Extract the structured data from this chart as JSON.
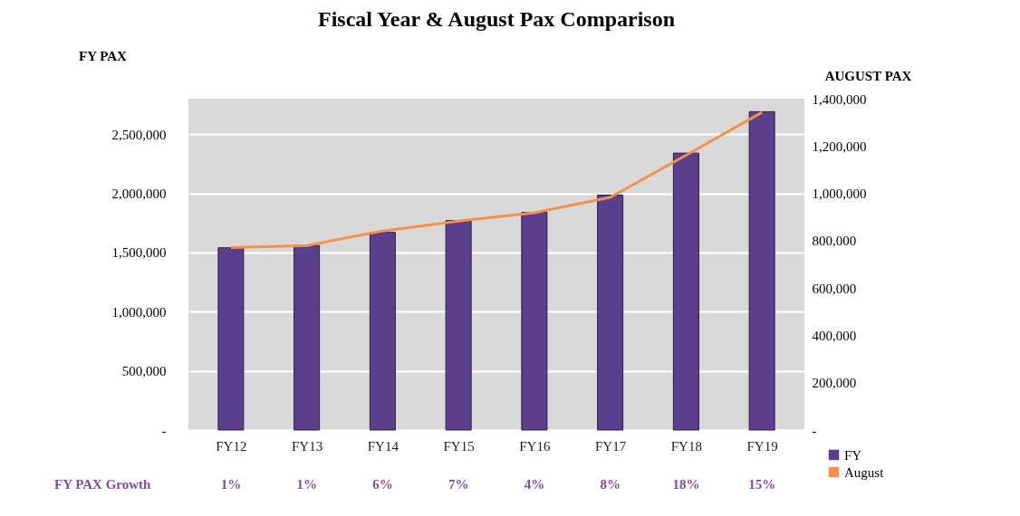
{
  "chart_data": {
    "type": "bar",
    "title": "Fiscal Year & August Pax Comparison",
    "ylabel": "FY PAX",
    "y2label": "AUGUST PAX",
    "categories": [
      "FY12",
      "FY13",
      "FY14",
      "FY15",
      "FY16",
      "FY17",
      "FY18",
      "FY19"
    ],
    "series": [
      {
        "name": "FY",
        "color": "#5b3f8c",
        "values": [
          1540000,
          1560000,
          1670000,
          1770000,
          1840000,
          1985000,
          2340000,
          2690000
        ]
      },
      {
        "name": "August",
        "type": "line",
        "axis": "y2",
        "color": "#f4914b",
        "values": [
          771000,
          779000,
          841000,
          883000,
          918000,
          983000,
          1161000,
          1342000
        ]
      }
    ],
    "ylim": [
      0,
      2800000
    ],
    "yticks": [
      {
        "value": 0,
        "label": "-"
      },
      {
        "value": 500000,
        "label": "500,000"
      },
      {
        "value": 1000000,
        "label": "1,000,000"
      },
      {
        "value": 1500000,
        "label": "1,500,000"
      },
      {
        "value": 2000000,
        "label": "2,000,000"
      },
      {
        "value": 2500000,
        "label": "2,500,000"
      }
    ],
    "y2lim": [
      0,
      1400000
    ],
    "y2ticks": [
      {
        "value": 0,
        "label": "-"
      },
      {
        "value": 200000,
        "label": "200,000"
      },
      {
        "value": 400000,
        "label": "400,000"
      },
      {
        "value": 600000,
        "label": "600,000"
      },
      {
        "value": 800000,
        "label": "800,000"
      },
      {
        "value": 1000000,
        "label": "1,000,000"
      },
      {
        "value": 1200000,
        "label": "1,200,000"
      },
      {
        "value": 1400000,
        "label": "1,400,000"
      }
    ],
    "grid": "y",
    "legend": "bottom right",
    "annotations": [
      "FY PAX Growth",
      "1%",
      "1%",
      "6%",
      "7%",
      "4%",
      "8%",
      "18%",
      "15%"
    ]
  }
}
